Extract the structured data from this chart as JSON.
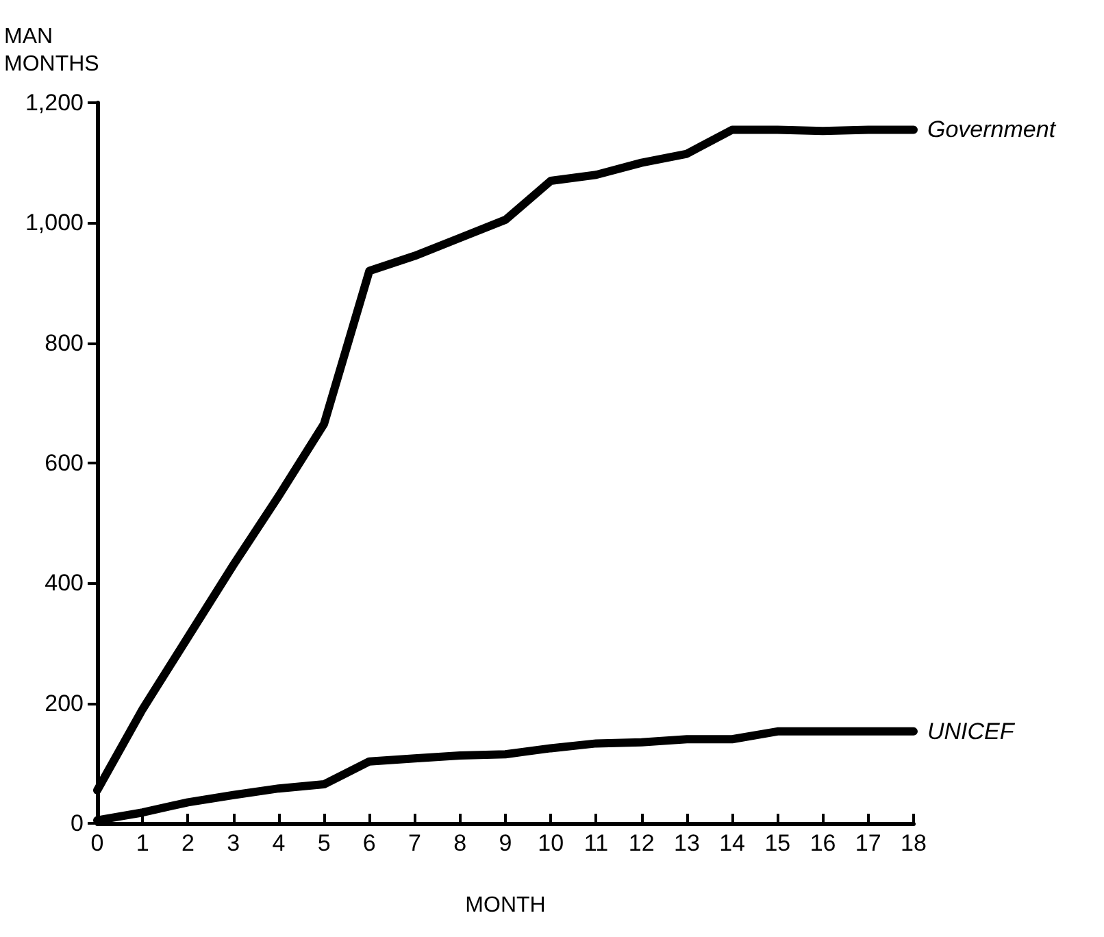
{
  "chart_data": {
    "type": "line",
    "xlabel": "MONTH",
    "ylabel": "MAN MONTHS",
    "x": [
      0,
      1,
      2,
      3,
      4,
      5,
      6,
      7,
      8,
      9,
      10,
      11,
      12,
      13,
      14,
      15,
      16,
      17,
      18
    ],
    "series": [
      {
        "name": "Government",
        "color": "#000000",
        "values": [
          55,
          190,
          310,
          430,
          545,
          665,
          920,
          945,
          975,
          1005,
          1070,
          1080,
          1100,
          1115,
          1155,
          1155,
          1153,
          1155,
          1155
        ]
      },
      {
        "name": "UNICEF",
        "color": "#000000",
        "values": [
          5,
          18,
          35,
          47,
          58,
          65,
          103,
          108,
          113,
          115,
          125,
          133,
          135,
          140,
          140,
          153,
          153,
          153,
          153
        ]
      }
    ],
    "xlim": [
      0,
      18
    ],
    "xticks": [
      0,
      1,
      2,
      3,
      4,
      5,
      6,
      7,
      8,
      9,
      10,
      11,
      12,
      13,
      14,
      15,
      16,
      17,
      18
    ],
    "ylim": [
      0,
      1200
    ],
    "yticks": [
      0,
      200,
      400,
      600,
      800,
      {
        "value": 1000,
        "label": "1,000"
      },
      {
        "value": 1200,
        "label": "1,200"
      }
    ],
    "grid": false,
    "legend": false,
    "marker": "none",
    "line_style": "solid"
  }
}
